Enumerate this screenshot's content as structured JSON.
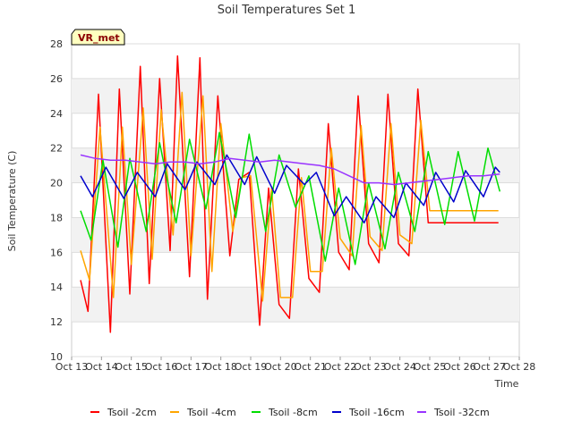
{
  "chart_data": {
    "type": "line",
    "title": "Soil Temperatures Set 1",
    "xlabel": "Time",
    "ylabel": "Soil Temperature (C)",
    "site_label": "VR_met",
    "xlim": [
      13,
      28
    ],
    "ylim": [
      10,
      28
    ],
    "x_ticks": [
      13,
      14,
      15,
      16,
      17,
      18,
      19,
      20,
      21,
      22,
      23,
      24,
      25,
      26,
      27,
      28
    ],
    "x_tick_labels": [
      "Oct 13",
      "Oct 14",
      "Oct 15",
      "Oct 16",
      "Oct 17",
      "Oct 18",
      "Oct 19",
      "Oct 20",
      "Oct 21",
      "Oct 22",
      "Oct 23",
      "Oct 24",
      "Oct 25",
      "Oct 26",
      "Oct 27",
      "Oct 28"
    ],
    "y_ticks": [
      10,
      12,
      14,
      16,
      18,
      20,
      22,
      24,
      26,
      28
    ],
    "grid": "horizontal bands",
    "legend_position": "bottom",
    "series": [
      {
        "name": "Tsoil -2cm",
        "color": "#ff0000",
        "x": [
          13.3,
          13.55,
          13.9,
          14.3,
          14.6,
          14.95,
          15.3,
          15.6,
          15.95,
          16.3,
          16.55,
          16.95,
          17.3,
          17.55,
          17.9,
          18.3,
          18.6,
          18.95,
          19.3,
          19.6,
          19.95,
          20.3,
          20.6,
          20.95,
          21.3,
          21.6,
          21.95,
          22.3,
          22.6,
          22.95,
          23.3,
          23.6,
          23.95,
          24.3,
          24.6,
          24.95,
          25.3,
          25.6,
          25.95,
          26.3,
          26.6,
          26.95,
          27.3
        ],
        "y": [
          14.4,
          12.6,
          25.1,
          11.4,
          25.4,
          13.6,
          26.7,
          14.2,
          26.0,
          16.1,
          27.3,
          14.6,
          27.2,
          13.3,
          25.0,
          15.8,
          20.2,
          20.6,
          11.8,
          19.7,
          13.0,
          12.2,
          20.8,
          14.5,
          13.7,
          23.4,
          16.0,
          15.0,
          25.0,
          16.5,
          15.4,
          25.1,
          16.5,
          15.8,
          25.4,
          17.7,
          17.7,
          17.7,
          17.7,
          17.7,
          17.7,
          17.7,
          17.7
        ]
      },
      {
        "name": "Tsoil -4cm",
        "color": "#ffa500",
        "x": [
          13.3,
          13.6,
          13.95,
          14.4,
          14.7,
          15.0,
          15.4,
          15.7,
          16.0,
          16.4,
          16.7,
          17.0,
          17.4,
          17.7,
          18.0,
          18.4,
          18.7,
          19.0,
          19.4,
          19.7,
          20.0,
          20.4,
          20.7,
          21.0,
          21.4,
          21.7,
          22.0,
          22.4,
          22.7,
          23.0,
          23.4,
          23.7,
          24.0,
          24.4,
          24.7,
          25.0,
          25.4,
          25.7,
          26.0,
          26.4,
          26.7,
          27.0,
          27.3
        ],
        "y": [
          16.1,
          14.4,
          23.2,
          13.4,
          23.2,
          15.3,
          24.3,
          15.6,
          24.2,
          17.0,
          25.2,
          15.8,
          25.0,
          14.9,
          23.4,
          17.2,
          20.3,
          20.4,
          13.2,
          19.7,
          13.4,
          13.4,
          20.3,
          14.9,
          14.9,
          22.0,
          16.8,
          15.8,
          23.3,
          16.9,
          16.1,
          23.4,
          17.0,
          16.5,
          23.6,
          18.4,
          18.4,
          18.4,
          18.4,
          18.4,
          18.4,
          18.4,
          18.4
        ],
        "note": ""
      },
      {
        "name": "Tsoil -8cm",
        "color": "#00dd00",
        "x": [
          13.3,
          13.65,
          14.05,
          14.55,
          14.95,
          15.5,
          15.95,
          16.5,
          16.95,
          17.5,
          17.95,
          18.5,
          18.95,
          19.5,
          19.95,
          20.5,
          20.95,
          21.5,
          21.95,
          22.5,
          22.95,
          23.5,
          23.95,
          24.5,
          24.95,
          25.5,
          25.95,
          26.5,
          26.95,
          27.35
        ],
        "y": [
          18.4,
          16.7,
          21.3,
          16.3,
          21.4,
          17.2,
          22.3,
          17.7,
          22.5,
          18.5,
          22.9,
          18.0,
          22.8,
          17.2,
          21.6,
          18.6,
          20.4,
          15.5,
          19.7,
          15.3,
          20.0,
          16.2,
          20.6,
          17.2,
          21.8,
          17.6,
          21.8,
          17.8,
          22.0,
          19.5
        ]
      },
      {
        "name": "Tsoil -16cm",
        "color": "#0000cc",
        "x": [
          13.3,
          13.7,
          14.15,
          14.75,
          15.2,
          15.8,
          16.2,
          16.8,
          17.2,
          17.8,
          18.2,
          18.8,
          19.2,
          19.8,
          20.2,
          20.8,
          21.2,
          21.8,
          22.2,
          22.8,
          23.2,
          23.8,
          24.2,
          24.8,
          25.2,
          25.8,
          26.2,
          26.8,
          27.2,
          27.35
        ],
        "y": [
          20.4,
          19.2,
          20.9,
          19.1,
          20.6,
          19.2,
          21.1,
          19.6,
          21.2,
          19.9,
          21.6,
          19.9,
          21.5,
          19.4,
          21.0,
          19.9,
          20.6,
          18.1,
          19.2,
          17.7,
          19.2,
          18.0,
          20.0,
          18.7,
          20.6,
          18.9,
          20.7,
          19.2,
          20.9,
          20.6
        ]
      },
      {
        "name": "Tsoil -32cm",
        "color": "#9933ff",
        "x": [
          13.3,
          13.8,
          14.3,
          14.8,
          15.3,
          15.8,
          16.3,
          16.8,
          17.3,
          17.8,
          18.3,
          18.8,
          19.3,
          19.8,
          20.3,
          20.8,
          21.3,
          21.8,
          22.3,
          22.8,
          23.3,
          23.8,
          24.3,
          24.8,
          25.3,
          25.8,
          26.3,
          26.8,
          27.35
        ],
        "y": [
          21.6,
          21.4,
          21.3,
          21.3,
          21.2,
          21.1,
          21.2,
          21.2,
          21.1,
          21.2,
          21.4,
          21.3,
          21.2,
          21.3,
          21.2,
          21.1,
          21.0,
          20.8,
          20.4,
          20.0,
          20.0,
          19.9,
          20.0,
          20.1,
          20.2,
          20.3,
          20.4,
          20.4,
          20.5
        ]
      }
    ]
  }
}
